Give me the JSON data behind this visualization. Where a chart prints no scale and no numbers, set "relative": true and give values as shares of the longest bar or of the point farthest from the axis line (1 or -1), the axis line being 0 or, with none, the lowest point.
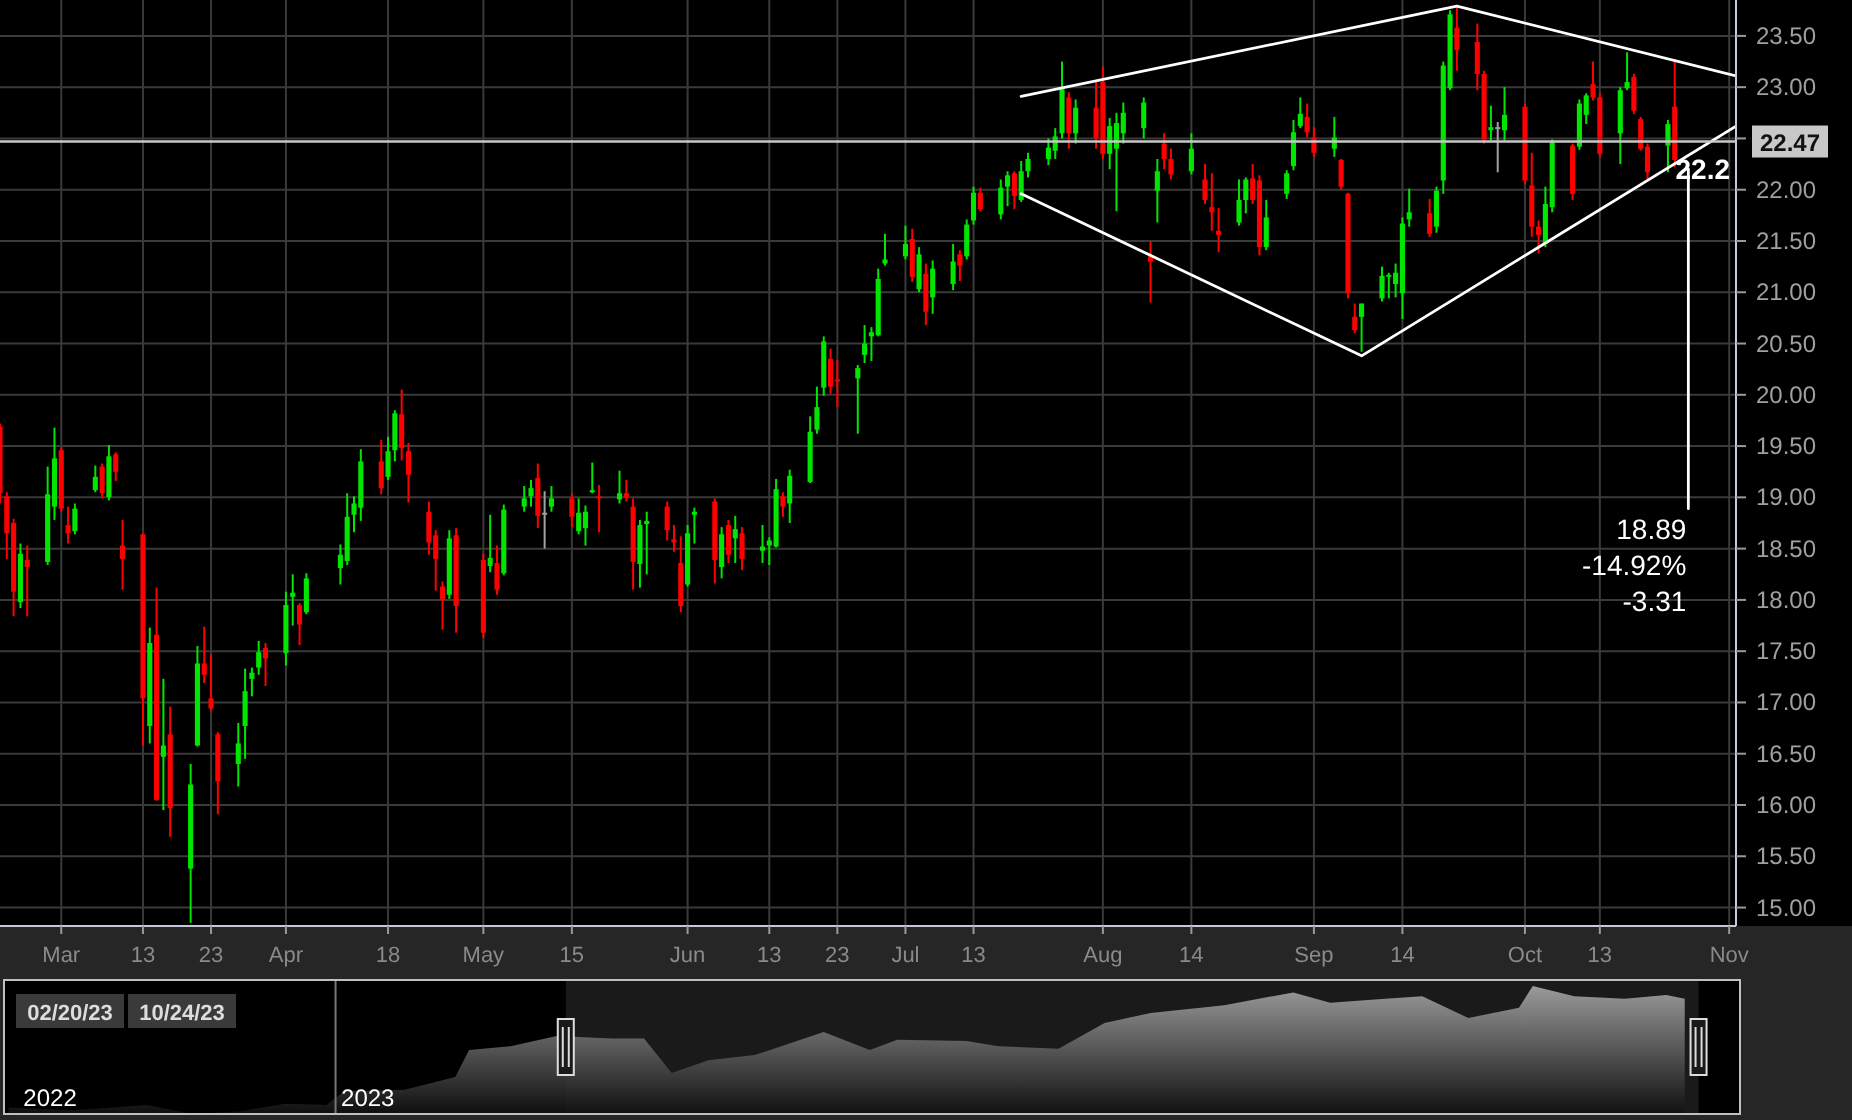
{
  "chart_data": [
    {
      "type": "candlestick",
      "x": [
        "2023-02-20",
        "2023-02-21",
        "2023-02-22",
        "2023-02-23",
        "2023-02-24",
        "2023-02-27",
        "2023-02-28",
        "2023-03-01",
        "2023-03-02",
        "2023-03-03",
        "2023-03-06",
        "2023-03-07",
        "2023-03-08",
        "2023-03-09",
        "2023-03-10",
        "2023-03-13",
        "2023-03-14",
        "2023-03-15",
        "2023-03-16",
        "2023-03-17",
        "2023-03-20",
        "2023-03-21",
        "2023-03-22",
        "2023-03-23",
        "2023-03-24",
        "2023-03-27",
        "2023-03-28",
        "2023-03-29",
        "2023-03-30",
        "2023-03-31",
        "2023-04-03",
        "2023-04-04",
        "2023-04-05",
        "2023-04-06",
        "2023-04-11",
        "2023-04-12",
        "2023-04-13",
        "2023-04-14",
        "2023-04-17",
        "2023-04-18",
        "2023-04-19",
        "2023-04-20",
        "2023-04-21",
        "2023-04-24",
        "2023-04-25",
        "2023-04-26",
        "2023-04-27",
        "2023-04-28",
        "2023-05-02",
        "2023-05-03",
        "2023-05-04",
        "2023-05-05",
        "2023-05-08",
        "2023-05-09",
        "2023-05-10",
        "2023-05-11",
        "2023-05-12",
        "2023-05-15",
        "2023-05-16",
        "2023-05-17",
        "2023-05-18",
        "2023-05-19",
        "2023-05-22",
        "2023-05-23",
        "2023-05-24",
        "2023-05-25",
        "2023-05-26",
        "2023-05-29",
        "2023-05-30",
        "2023-05-31",
        "2023-06-01",
        "2023-06-02",
        "2023-06-05",
        "2023-06-06",
        "2023-06-07",
        "2023-06-08",
        "2023-06-09",
        "2023-06-12",
        "2023-06-13",
        "2023-06-14",
        "2023-06-15",
        "2023-06-16",
        "2023-06-19",
        "2023-06-20",
        "2023-06-21",
        "2023-06-22",
        "2023-06-23",
        "2023-06-26",
        "2023-06-27",
        "2023-06-28",
        "2023-06-29",
        "2023-06-30",
        "2023-07-03",
        "2023-07-04",
        "2023-07-05",
        "2023-07-06",
        "2023-07-07",
        "2023-07-10",
        "2023-07-11",
        "2023-07-12",
        "2023-07-13",
        "2023-07-14",
        "2023-07-17",
        "2023-07-18",
        "2023-07-19",
        "2023-07-20",
        "2023-07-21",
        "2023-07-24",
        "2023-07-25",
        "2023-07-26",
        "2023-07-27",
        "2023-07-28",
        "2023-07-31",
        "2023-08-01",
        "2023-08-02",
        "2023-08-03",
        "2023-08-04",
        "2023-08-07",
        "2023-08-08",
        "2023-08-09",
        "2023-08-10",
        "2023-08-11",
        "2023-08-14",
        "2023-08-16",
        "2023-08-17",
        "2023-08-18",
        "2023-08-21",
        "2023-08-22",
        "2023-08-23",
        "2023-08-24",
        "2023-08-25",
        "2023-08-28",
        "2023-08-29",
        "2023-08-30",
        "2023-08-31",
        "2023-09-01",
        "2023-09-04",
        "2023-09-05",
        "2023-09-06",
        "2023-09-07",
        "2023-09-08",
        "2023-09-11",
        "2023-09-12",
        "2023-09-13",
        "2023-09-14",
        "2023-09-15",
        "2023-09-18",
        "2023-09-19",
        "2023-09-20",
        "2023-09-21",
        "2023-09-22",
        "2023-09-25",
        "2023-09-26",
        "2023-09-27",
        "2023-09-28",
        "2023-09-29",
        "2023-10-02",
        "2023-10-03",
        "2023-10-04",
        "2023-10-05",
        "2023-10-06",
        "2023-10-09",
        "2023-10-10",
        "2023-10-11",
        "2023-10-12",
        "2023-10-13",
        "2023-10-16",
        "2023-10-17",
        "2023-10-18",
        "2023-10-19",
        "2023-10-20",
        "2023-10-23",
        "2023-10-24"
      ],
      "ohlc": [
        [
          19.69,
          19.72,
          18.94,
          19.04
        ],
        [
          19.01,
          19.05,
          18.4,
          18.65
        ],
        [
          18.75,
          18.79,
          17.84,
          18.08
        ],
        [
          17.98,
          18.55,
          17.92,
          18.45
        ],
        [
          18.39,
          18.53,
          17.84,
          18.32
        ],
        [
          18.37,
          19.3,
          18.34,
          19.03
        ],
        [
          18.91,
          19.68,
          18.78,
          19.38
        ],
        [
          19.46,
          19.49,
          18.86,
          18.89
        ],
        [
          18.73,
          18.91,
          18.55,
          18.65
        ],
        [
          18.67,
          18.94,
          18.64,
          18.89
        ],
        [
          19.07,
          19.31,
          19.05,
          19.2
        ],
        [
          19.3,
          19.33,
          18.99,
          19.04
        ],
        [
          19.0,
          19.51,
          18.97,
          19.4
        ],
        [
          19.42,
          19.44,
          19.16,
          19.25
        ],
        [
          18.53,
          18.78,
          18.1,
          18.4
        ],
        [
          18.64,
          18.64,
          16.58,
          17.04
        ],
        [
          16.77,
          17.73,
          16.6,
          17.58
        ],
        [
          17.66,
          18.12,
          16.04,
          16.05
        ],
        [
          16.47,
          17.23,
          15.95,
          16.58
        ],
        [
          16.69,
          16.96,
          15.69,
          15.97
        ],
        [
          15.38,
          16.4,
          14.85,
          16.2
        ],
        [
          16.58,
          17.55,
          16.57,
          17.38
        ],
        [
          17.38,
          17.74,
          17.19,
          17.27
        ],
        [
          17.04,
          17.47,
          16.92,
          16.94
        ],
        [
          16.69,
          16.71,
          15.91,
          16.23
        ],
        [
          16.4,
          16.8,
          16.18,
          16.6
        ],
        [
          16.77,
          17.33,
          16.45,
          17.11
        ],
        [
          17.23,
          17.34,
          17.06,
          17.29
        ],
        [
          17.34,
          17.6,
          17.27,
          17.49
        ],
        [
          17.53,
          17.58,
          17.16,
          17.43
        ],
        [
          17.48,
          18.08,
          17.36,
          17.95
        ],
        [
          18.03,
          18.25,
          17.75,
          18.07
        ],
        [
          17.95,
          17.97,
          17.56,
          17.76
        ],
        [
          17.88,
          18.26,
          17.86,
          18.21
        ],
        [
          18.31,
          18.54,
          18.15,
          18.44
        ],
        [
          18.38,
          19.04,
          18.34,
          18.81
        ],
        [
          18.83,
          19.01,
          18.66,
          18.94
        ],
        [
          18.9,
          19.47,
          18.77,
          19.35
        ],
        [
          19.35,
          19.56,
          19.03,
          19.09
        ],
        [
          19.2,
          19.59,
          19.17,
          19.45
        ],
        [
          19.46,
          19.85,
          19.35,
          19.82
        ],
        [
          19.81,
          20.05,
          19.36,
          19.48
        ],
        [
          19.45,
          19.53,
          18.95,
          19.22
        ],
        [
          18.86,
          18.96,
          18.44,
          18.56
        ],
        [
          18.63,
          18.68,
          18.09,
          18.4
        ],
        [
          18.13,
          18.18,
          17.71,
          18.0
        ],
        [
          18.05,
          18.68,
          18.01,
          18.6
        ],
        [
          18.63,
          18.7,
          17.68,
          17.94
        ],
        [
          18.39,
          18.45,
          17.63,
          17.68
        ],
        [
          18.33,
          18.83,
          18.27,
          18.41
        ],
        [
          18.36,
          18.53,
          18.05,
          18.1
        ],
        [
          18.26,
          18.93,
          18.24,
          18.88
        ],
        [
          18.91,
          19.11,
          18.86,
          18.99
        ],
        [
          19.01,
          19.17,
          18.91,
          19.09
        ],
        [
          19.19,
          19.33,
          18.7,
          18.82
        ],
        [
          18.85,
          19.06,
          18.5,
          18.85
        ],
        [
          18.91,
          19.11,
          18.86,
          18.99
        ],
        [
          18.99,
          19.04,
          18.71,
          18.81
        ],
        [
          18.67,
          18.99,
          18.64,
          18.85
        ],
        [
          18.7,
          18.92,
          18.53,
          18.86
        ],
        [
          19.05,
          19.34,
          19.04,
          19.07
        ],
        [
          19.01,
          19.12,
          18.66,
          18.99
        ],
        [
          18.98,
          19.26,
          18.94,
          19.04
        ],
        [
          19.04,
          19.17,
          18.96,
          19.0
        ],
        [
          18.91,
          18.99,
          18.1,
          18.37
        ],
        [
          18.35,
          18.78,
          18.12,
          18.73
        ],
        [
          18.74,
          18.86,
          18.25,
          18.77
        ],
        [
          18.91,
          18.96,
          18.58,
          18.68
        ],
        [
          18.59,
          18.73,
          18.47,
          18.56
        ],
        [
          18.36,
          18.62,
          17.88,
          17.94
        ],
        [
          18.15,
          18.73,
          18.13,
          18.65
        ],
        [
          18.83,
          18.9,
          18.55,
          18.86
        ],
        [
          18.96,
          18.99,
          18.16,
          18.39
        ],
        [
          18.32,
          18.71,
          18.21,
          18.64
        ],
        [
          18.73,
          18.78,
          18.36,
          18.44
        ],
        [
          18.6,
          18.82,
          18.36,
          18.69
        ],
        [
          18.65,
          18.71,
          18.29,
          18.4
        ],
        [
          18.48,
          18.73,
          18.36,
          18.52
        ],
        [
          18.53,
          18.61,
          18.34,
          18.58
        ],
        [
          18.52,
          19.18,
          18.51,
          19.08
        ],
        [
          19.01,
          19.05,
          18.81,
          18.91
        ],
        [
          18.94,
          19.27,
          18.75,
          19.21
        ],
        [
          19.15,
          19.79,
          19.14,
          19.64
        ],
        [
          19.66,
          20.08,
          19.62,
          19.88
        ],
        [
          20.07,
          20.57,
          19.99,
          20.52
        ],
        [
          20.35,
          20.45,
          20.01,
          20.08
        ],
        [
          20.15,
          20.34,
          19.88,
          20.13
        ],
        [
          20.16,
          20.29,
          19.62,
          20.26
        ],
        [
          20.39,
          20.68,
          20.31,
          20.5
        ],
        [
          20.57,
          20.66,
          20.33,
          20.61
        ],
        [
          20.58,
          21.23,
          20.57,
          21.13
        ],
        [
          21.28,
          21.57,
          21.26,
          21.32
        ],
        [
          21.35,
          21.65,
          21.32,
          21.47
        ],
        [
          21.52,
          21.62,
          21.1,
          21.15
        ],
        [
          21.03,
          21.44,
          21.0,
          21.37
        ],
        [
          21.18,
          21.28,
          20.68,
          20.81
        ],
        [
          20.95,
          21.31,
          20.79,
          21.23
        ],
        [
          21.08,
          21.47,
          21.02,
          21.3
        ],
        [
          21.37,
          21.41,
          21.11,
          21.26
        ],
        [
          21.35,
          21.71,
          21.32,
          21.66
        ],
        [
          21.7,
          22.03,
          21.66,
          21.97
        ],
        [
          21.97,
          22.02,
          21.79,
          21.81
        ],
        [
          21.76,
          22.1,
          21.71,
          22.02
        ],
        [
          22.03,
          22.18,
          21.84,
          22.14
        ],
        [
          22.16,
          22.18,
          21.81,
          21.94
        ],
        [
          21.9,
          22.28,
          21.88,
          22.18
        ],
        [
          22.18,
          22.36,
          22.12,
          22.3
        ],
        [
          22.3,
          22.5,
          22.24,
          22.41
        ],
        [
          22.38,
          22.6,
          22.3,
          22.52
        ],
        [
          22.55,
          23.25,
          22.5,
          22.98
        ],
        [
          22.9,
          22.95,
          22.4,
          22.55
        ],
        [
          22.55,
          22.88,
          22.45,
          22.8
        ],
        [
          22.8,
          23.05,
          22.4,
          22.5
        ],
        [
          23.05,
          23.2,
          22.3,
          22.35
        ],
        [
          22.35,
          22.7,
          22.2,
          22.62
        ],
        [
          22.4,
          22.75,
          21.79,
          22.65
        ],
        [
          22.55,
          22.85,
          22.45,
          22.75
        ],
        [
          22.6,
          22.9,
          22.5,
          22.85
        ],
        [
          21.35,
          21.5,
          20.9,
          21.3
        ],
        [
          21.99,
          22.3,
          21.68,
          22.18
        ],
        [
          22.45,
          22.55,
          22.2,
          22.3
        ],
        [
          22.3,
          22.4,
          22.1,
          22.15
        ],
        [
          22.18,
          22.55,
          22.15,
          22.4
        ],
        [
          22.1,
          22.25,
          21.86,
          21.9
        ],
        [
          21.83,
          22.16,
          21.6,
          21.78
        ],
        [
          21.6,
          21.82,
          21.39,
          21.56
        ],
        [
          21.68,
          22.1,
          21.65,
          21.9
        ],
        [
          21.9,
          22.12,
          21.77,
          22.1
        ],
        [
          22.11,
          22.25,
          21.86,
          21.9
        ],
        [
          22.09,
          22.14,
          21.36,
          21.44
        ],
        [
          21.44,
          21.9,
          21.41,
          21.73
        ],
        [
          21.96,
          22.19,
          21.91,
          22.16
        ],
        [
          22.23,
          22.68,
          22.19,
          22.56
        ],
        [
          22.62,
          22.9,
          22.6,
          22.74
        ],
        [
          22.71,
          22.84,
          22.51,
          22.56
        ],
        [
          22.51,
          22.61,
          22.32,
          22.36
        ],
        [
          22.4,
          22.71,
          22.32,
          22.51
        ],
        [
          22.29,
          22.3,
          22.0,
          22.03
        ],
        [
          21.96,
          21.97,
          20.94,
          20.99
        ],
        [
          20.76,
          20.89,
          20.6,
          20.63
        ],
        [
          20.76,
          20.89,
          20.42,
          20.89
        ],
        [
          20.94,
          21.25,
          20.91,
          21.16
        ],
        [
          21.16,
          21.19,
          20.94,
          21.17
        ],
        [
          21.08,
          21.28,
          20.95,
          21.19
        ],
        [
          20.99,
          21.73,
          20.74,
          21.67
        ],
        [
          21.71,
          22.01,
          21.64,
          21.78
        ],
        [
          21.77,
          21.91,
          21.54,
          21.57
        ],
        [
          21.64,
          22.03,
          21.58,
          21.99
        ],
        [
          22.09,
          23.25,
          21.96,
          23.21
        ],
        [
          22.99,
          23.75,
          22.97,
          23.71
        ],
        [
          23.58,
          23.78,
          23.16,
          23.36
        ],
        [
          23.44,
          23.62,
          22.97,
          23.13
        ],
        [
          23.13,
          23.16,
          22.45,
          22.49
        ],
        [
          22.58,
          22.82,
          22.48,
          22.61
        ],
        [
          22.61,
          22.66,
          22.17,
          22.61
        ],
        [
          22.58,
          23.0,
          22.48,
          22.73
        ],
        [
          22.81,
          22.84,
          22.06,
          22.09
        ],
        [
          22.04,
          22.36,
          21.54,
          21.64
        ],
        [
          21.64,
          21.7,
          21.38,
          21.56
        ],
        [
          21.47,
          22.03,
          21.44,
          21.86
        ],
        [
          21.83,
          22.49,
          21.78,
          22.47
        ],
        [
          22.43,
          22.45,
          21.9,
          21.96
        ],
        [
          22.42,
          22.88,
          22.39,
          22.84
        ],
        [
          22.73,
          22.94,
          22.64,
          22.92
        ],
        [
          23.03,
          23.25,
          22.87,
          22.9
        ],
        [
          22.9,
          22.94,
          22.32,
          22.35
        ],
        [
          22.55,
          23.0,
          22.25,
          22.97
        ],
        [
          22.99,
          23.34,
          22.97,
          23.05
        ],
        [
          23.1,
          23.13,
          22.74,
          22.77
        ],
        [
          22.69,
          22.71,
          22.38,
          22.4
        ],
        [
          22.42,
          22.45,
          22.1,
          22.17
        ],
        [
          22.43,
          22.68,
          22.17,
          22.64
        ],
        [
          22.81,
          23.27,
          22.22,
          22.29
        ]
      ],
      "colors": [
        "#ff0000",
        "#ff0000",
        "#ff0000",
        "#00e600",
        "#ff0000",
        "#00e600",
        "#00e600",
        "#ff0000",
        "#ff0000",
        "#00e600",
        "#00e600",
        "#ff0000",
        "#00e600",
        "#ff0000",
        "#ff0000",
        "#ff0000",
        "#00e600",
        "#ff0000",
        "#00e600",
        "#ff0000",
        "#00e600",
        "#00e600",
        "#ff0000",
        "#ff0000",
        "#ff0000",
        "#00e600",
        "#00e600",
        "#00e600",
        "#00e600",
        "#ff0000",
        "#00e600",
        "#00e600",
        "#ff0000",
        "#00e600",
        "#00e600",
        "#00e600",
        "#00e600",
        "#00e600",
        "#ff0000",
        "#00e600",
        "#00e600",
        "#ff0000",
        "#ff0000",
        "#ff0000",
        "#ff0000",
        "#ff0000",
        "#00e600",
        "#ff0000",
        "#ff0000",
        "#00e600",
        "#ff0000",
        "#00e600",
        "#00e600",
        "#00e600",
        "#ff0000",
        "#a0a0a0",
        "#00e600",
        "#ff0000",
        "#00e600",
        "#00e600",
        "#00e600",
        "#ff0000",
        "#00e600",
        "#ff0000",
        "#ff0000",
        "#00e600",
        "#00e600",
        "#ff0000",
        "#ff0000",
        "#ff0000",
        "#00e600",
        "#00e600",
        "#ff0000",
        "#00e600",
        "#ff0000",
        "#00e600",
        "#ff0000",
        "#00e600",
        "#00e600",
        "#00e600",
        "#ff0000",
        "#00e600",
        "#00e600",
        "#00e600",
        "#00e600",
        "#ff0000",
        "#ff0000",
        "#00e600",
        "#00e600",
        "#00e600",
        "#00e600",
        "#00e600",
        "#00e600",
        "#ff0000",
        "#00e600",
        "#ff0000",
        "#00e600",
        "#00e600",
        "#ff0000",
        "#00e600",
        "#00e600",
        "#ff0000",
        "#00e600",
        "#00e600",
        "#ff0000",
        "#00e600",
        "#00e600",
        "#00e600",
        "#00e600",
        "#00e600",
        "#ff0000",
        "#00e600",
        "#ff0000",
        "#ff0000",
        "#00e600",
        "#00e600",
        "#00e600",
        "#00e600",
        "#ff0000",
        "#00e600",
        "#ff0000",
        "#ff0000",
        "#00e600",
        "#ff0000",
        "#ff0000",
        "#ff0000",
        "#00e600",
        "#00e600",
        "#ff0000",
        "#ff0000",
        "#00e600",
        "#00e600",
        "#00e600",
        "#00e600",
        "#ff0000",
        "#ff0000",
        "#00e600",
        "#ff0000",
        "#ff0000",
        "#ff0000",
        "#00e600",
        "#00e600",
        "#00e600",
        "#00e600",
        "#00e600",
        "#00e600",
        "#ff0000",
        "#00e600",
        "#00e600",
        "#00e600",
        "#ff0000",
        "#ff0000",
        "#ff0000",
        "#00e600",
        "#a0a0a0",
        "#00e600",
        "#ff0000",
        "#ff0000",
        "#ff0000",
        "#00e600",
        "#00e600",
        "#ff0000",
        "#00e600",
        "#00e600",
        "#ff0000",
        "#ff0000",
        "#00e600",
        "#00e600",
        "#ff0000",
        "#ff0000",
        "#ff0000",
        "#00e600",
        "#ff0000"
      ],
      "series": [
        {
          "type": "line",
          "color": "#ffffff",
          "x": [
            "2023-07-20",
            "2023-09-22",
            "2023-11-02"
          ],
          "values": [
            22.91,
            23.79,
            23.11
          ]
        },
        {
          "type": "line",
          "color": "#ffffff",
          "x": [
            "2023-07-20",
            "2023-09-08",
            "2023-11-02"
          ],
          "values": [
            21.96,
            20.38,
            22.62
          ]
        },
        {
          "type": "line",
          "color": "#ffffff",
          "x": [
            "2023-10-26",
            "2023-10-26"
          ],
          "values": [
            22.2,
            18.89
          ]
        }
      ],
      "xlim": [
        "2023-02-20",
        "2023-11-02"
      ],
      "xticks": [
        {
          "value": "2023-03-01",
          "label": "Mar"
        },
        {
          "value": "2023-03-13",
          "label": "13"
        },
        {
          "value": "2023-03-23",
          "label": "23"
        },
        {
          "value": "2023-04-03",
          "label": "Apr"
        },
        {
          "value": "2023-04-18",
          "label": "18"
        },
        {
          "value": "2023-05-02",
          "label": "May"
        },
        {
          "value": "2023-05-15",
          "label": "15"
        },
        {
          "value": "2023-06-01",
          "label": "Jun"
        },
        {
          "value": "2023-06-13",
          "label": "13"
        },
        {
          "value": "2023-06-23",
          "label": "23"
        },
        {
          "value": "2023-07-03",
          "label": "Jul"
        },
        {
          "value": "2023-07-13",
          "label": "13"
        },
        {
          "value": "2023-08-01",
          "label": "Aug"
        },
        {
          "value": "2023-08-14",
          "label": "14"
        },
        {
          "value": "2023-09-01",
          "label": "Sep"
        },
        {
          "value": "2023-09-14",
          "label": "14"
        },
        {
          "value": "2023-10-02",
          "label": "Oct"
        },
        {
          "value": "2023-10-13",
          "label": "13"
        },
        {
          "value": "2023-11-01",
          "label": "Nov"
        }
      ],
      "ylim": [
        14.82,
        23.85
      ],
      "yticks": [
        {
          "value": 15,
          "label": "15.00"
        },
        {
          "value": 15.5,
          "label": "15.50"
        },
        {
          "value": 16,
          "label": "16.00"
        },
        {
          "value": 16.5,
          "label": "16.50"
        },
        {
          "value": 17,
          "label": "17.00"
        },
        {
          "value": 17.5,
          "label": "17.50"
        },
        {
          "value": 18,
          "label": "18.00"
        },
        {
          "value": 18.5,
          "label": "18.50"
        },
        {
          "value": 19,
          "label": "19.00"
        },
        {
          "value": 19.5,
          "label": "19.50"
        },
        {
          "value": 20,
          "label": "20.00"
        },
        {
          "value": 20.5,
          "label": "20.50"
        },
        {
          "value": 21,
          "label": "21.00"
        },
        {
          "value": 21.5,
          "label": "21.50"
        },
        {
          "value": 22,
          "label": "22.00"
        },
        {
          "value": 22.5,
          "label": null
        },
        {
          "value": 23,
          "label": "23.00"
        },
        {
          "value": 23.5,
          "label": "23.50"
        }
      ],
      "ref_lines": [
        {
          "axis": "y",
          "value": 22.47,
          "label": "22.47",
          "color": "#c8c8c8"
        }
      ],
      "annotations": [
        {
          "text": "22.2",
          "x": "2023-10-26",
          "y": 22.2
        },
        {
          "text": "18.89",
          "x": "2023-10-26",
          "y": 18.89
        },
        "-14.92%",
        "-3.31"
      ],
      "grid": true
    },
    {
      "type": "area",
      "relative": true,
      "x": [
        "2022-10-22",
        "2022-11-05",
        "2022-11-21",
        "2022-12-01",
        "2022-12-11",
        "2022-12-21",
        "2022-12-30",
        "2023-01-03",
        "2023-01-16",
        "2023-01-27",
        "2023-01-30",
        "2023-02-08",
        "2023-02-18",
        "2023-03-02",
        "2023-03-09",
        "2023-03-15",
        "2023-03-23",
        "2023-04-02",
        "2023-04-17",
        "2023-04-27",
        "2023-05-03",
        "2023-05-18",
        "2023-05-25",
        "2023-06-07",
        "2023-06-17",
        "2023-06-27",
        "2023-07-13",
        "2023-07-28",
        "2023-08-05",
        "2023-08-17",
        "2023-08-25",
        "2023-09-04",
        "2023-09-15",
        "2023-09-18",
        "2023-09-27",
        "2023-10-08",
        "2023-10-17",
        "2023-10-21"
      ],
      "series": [
        {
          "color": "#a8a8a8",
          "values": [
            0.05,
            0.03,
            0.07,
            0,
            0.02,
            0.08,
            0.07,
            0.18,
            0.19,
            0.29,
            0.5,
            0.53,
            0.61,
            0.59,
            0.59,
            0.32,
            0.42,
            0.46,
            0.64,
            0.5,
            0.58,
            0.57,
            0.53,
            0.51,
            0.71,
            0.79,
            0.85,
            0.95,
            0.87,
            0.9,
            0.92,
            0.75,
            0.83,
            1,
            0.92,
            0.9,
            0.93,
            0.9
          ]
        }
      ],
      "xlim": [
        "2022-10-21",
        "2023-11-02"
      ],
      "xticks": [
        {
          "value": "2022-10-31",
          "label": "2022"
        },
        {
          "value": "2023-01-08",
          "label": "2023"
        }
      ],
      "ref_lines": [
        {
          "axis": "x",
          "value": "2023-01-01",
          "color": "#777777"
        }
      ],
      "bands": [
        {
          "axis": "x",
          "from": "2023-02-20",
          "to": "2023-10-24",
          "color": "#ffffff"
        }
      ],
      "annotations": [
        "02/20/23",
        "10/24/23"
      ]
    }
  ]
}
